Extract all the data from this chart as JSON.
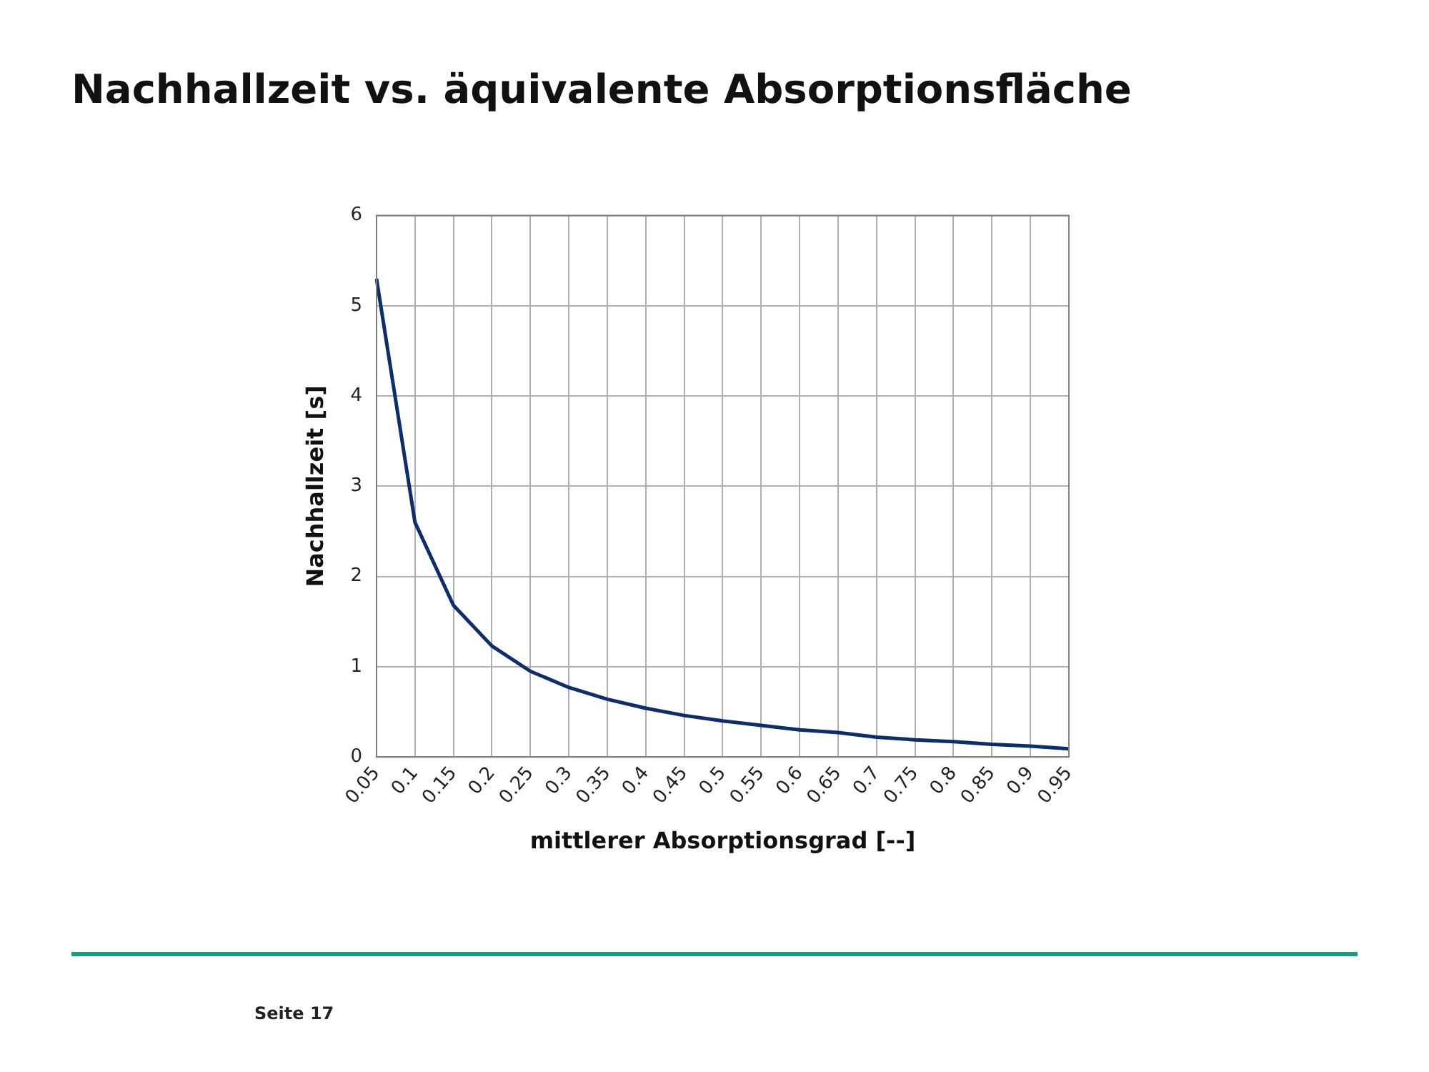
{
  "chart_data": {
    "type": "line",
    "title": "Nachhallzeit vs. äquivalente Absorptionsfläche",
    "xlabel": "mittlerer Absorptionsgrad [--]",
    "ylabel": "Nachhallzeit [s]",
    "categories": [
      "0.05",
      "0.1",
      "0.15",
      "0.2",
      "0.25",
      "0.3",
      "0.35",
      "0.4",
      "0.45",
      "0.5",
      "0.55",
      "0.6",
      "0.65",
      "0.7",
      "0.75",
      "0.8",
      "0.85",
      "0.9",
      "0.95"
    ],
    "series": [
      {
        "color": "#0d2d6c",
        "values": [
          5.3,
          2.6,
          1.68,
          1.23,
          0.95,
          0.77,
          0.64,
          0.54,
          0.46,
          0.4,
          0.35,
          0.3,
          0.27,
          0.22,
          0.19,
          0.17,
          0.14,
          0.12,
          0.09
        ]
      }
    ],
    "ylim": [
      0,
      6
    ],
    "yticks": [
      0,
      1,
      2,
      3,
      4,
      5,
      6
    ],
    "grid": true,
    "legend": false,
    "marker": "none",
    "line_style": "solid",
    "annotations": [
      "Seite 17"
    ]
  }
}
